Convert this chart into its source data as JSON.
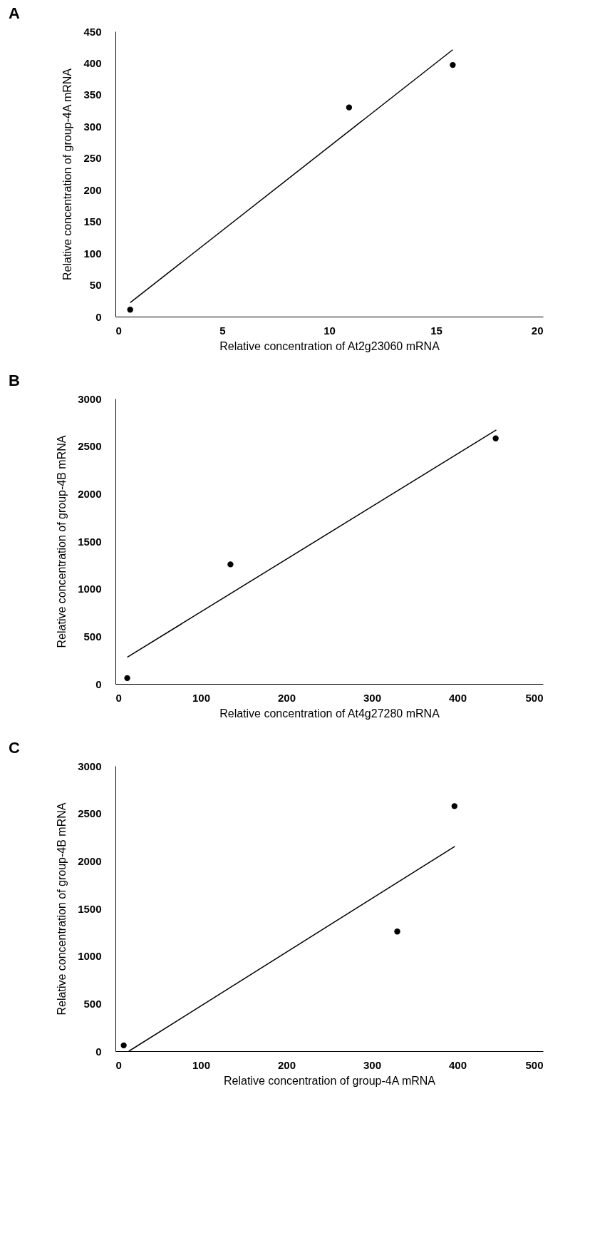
{
  "chart_data": [
    {
      "type": "scatter",
      "annotations": [
        "A"
      ],
      "xlabel": "Relative concentration of At2g23060 mRNA",
      "ylabel": "Relative concentration of group-4A mRNA",
      "xlim": [
        0,
        20
      ],
      "xticks": [
        0,
        5,
        10,
        15,
        20
      ],
      "ylim": [
        0,
        450
      ],
      "yticks": [
        0,
        50,
        100,
        150,
        200,
        250,
        300,
        350,
        400,
        450
      ],
      "grid": false,
      "series": [
        {
          "color": "#000000",
          "marker": "circle",
          "x": [
            0.69,
            10.93,
            15.78
          ],
          "values": [
            11,
            330,
            397
          ]
        },
        {
          "type": "line",
          "color": "#000000",
          "marker": "none",
          "x": [
            0.69,
            15.78
          ],
          "values": [
            22,
            421
          ]
        }
      ]
    },
    {
      "type": "scatter",
      "annotations": [
        "B"
      ],
      "xlabel": "Relative concentration of At4g27280 mRNA",
      "ylabel": "Relative concentration of group-4B mRNA",
      "xlim": [
        0,
        500
      ],
      "xticks": [
        0,
        100,
        200,
        300,
        400,
        500
      ],
      "ylim": [
        0,
        3000
      ],
      "yticks": [
        0,
        500,
        1000,
        1500,
        2000,
        2500,
        3000
      ],
      "grid": false,
      "series": [
        {
          "color": "#000000",
          "marker": "circle",
          "x": [
            13.8,
            134.5,
            444.7
          ],
          "values": [
            61,
            1257,
            2582
          ]
        },
        {
          "type": "line",
          "color": "#000000",
          "marker": "none",
          "x": [
            13.8,
            445.4
          ],
          "values": [
            280,
            2671
          ]
        }
      ]
    },
    {
      "type": "scatter",
      "annotations": [
        "C"
      ],
      "xlabel": "Relative concentration of group-4A mRNA",
      "ylabel": "Relative concentration of group-4B mRNA",
      "xlim": [
        0,
        500
      ],
      "xticks": [
        0,
        100,
        200,
        300,
        400,
        500
      ],
      "ylim": [
        0,
        3000
      ],
      "yticks": [
        0,
        500,
        1000,
        1500,
        2000,
        2500,
        3000
      ],
      "grid": false,
      "series": [
        {
          "color": "#000000",
          "marker": "circle",
          "x": [
            9.7,
            329.6,
            396.5
          ],
          "values": [
            61,
            1258,
            2577
          ]
        },
        {
          "type": "line",
          "color": "#000000",
          "marker": "none",
          "x": [
            15.7,
            396.9
          ],
          "values": [
            0,
            2154
          ]
        }
      ]
    }
  ]
}
